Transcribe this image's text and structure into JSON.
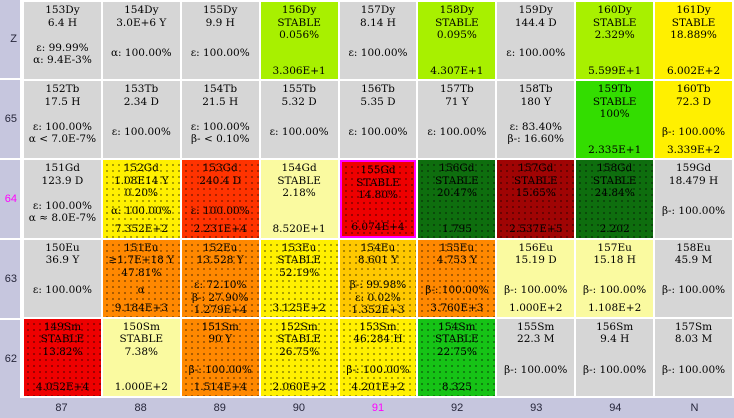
{
  "palette": {
    "gray": "#d6d6d6",
    "chartreuse": "#a8f000",
    "green": "#33dd00",
    "midgreen": "#16c316",
    "darkgreen": "#0e6e0e",
    "yellow": "#fff000",
    "paleyellow": "#fafaa0",
    "amber": "#ffc800",
    "orange": "#ff8800",
    "orangered": "#ff3300",
    "red": "#ee0000",
    "darkred": "#a00404",
    "axis_bg": "#c6c6de",
    "axis_text": "#26263a",
    "highlight": "#ff00ff",
    "cell_text": "#000000",
    "grid_bg": "#ffffff"
  },
  "selected": {
    "nuclide": "155Gd",
    "border_color": "#ff00ff"
  },
  "z_axis": {
    "labels": [
      {
        "text": "Z",
        "highlighted": false
      },
      {
        "text": "65",
        "highlighted": false
      },
      {
        "text": "64",
        "highlighted": true
      },
      {
        "text": "63",
        "highlighted": false
      },
      {
        "text": "62",
        "highlighted": false
      }
    ]
  },
  "n_axis": {
    "labels": [
      {
        "text": "87",
        "highlighted": false
      },
      {
        "text": "88",
        "highlighted": false
      },
      {
        "text": "89",
        "highlighted": false
      },
      {
        "text": "90",
        "highlighted": false
      },
      {
        "text": "91",
        "highlighted": true
      },
      {
        "text": "92",
        "highlighted": false
      },
      {
        "text": "93",
        "highlighted": false
      },
      {
        "text": "94",
        "highlighted": false
      },
      {
        "text": "N",
        "highlighted": false
      }
    ]
  },
  "rows": [
    {
      "element": "Dy",
      "cells": [
        {
          "name": "153Dy",
          "line2": "6.4 H",
          "abundance": "",
          "decay": [
            "ε: 99.99%",
            "α: 9.4E-3%"
          ],
          "value": "",
          "color": "gray",
          "dotted": false,
          "selected": false
        },
        {
          "name": "154Dy",
          "line2": "3.0E+6 Y",
          "abundance": "",
          "decay": [
            "α: 100.00%"
          ],
          "value": "",
          "color": "gray",
          "dotted": false,
          "selected": false
        },
        {
          "name": "155Dy",
          "line2": "9.9 H",
          "abundance": "",
          "decay": [
            "ε: 100.00%"
          ],
          "value": "",
          "color": "gray",
          "dotted": false,
          "selected": false
        },
        {
          "name": "156Dy",
          "line2": "STABLE",
          "abundance": "0.056%",
          "decay": [],
          "value": "3.306E+1",
          "color": "chartreuse",
          "dotted": false,
          "selected": false
        },
        {
          "name": "157Dy",
          "line2": "8.14 H",
          "abundance": "",
          "decay": [
            "ε: 100.00%"
          ],
          "value": "",
          "color": "gray",
          "dotted": false,
          "selected": false
        },
        {
          "name": "158Dy",
          "line2": "STABLE",
          "abundance": "0.095%",
          "decay": [],
          "value": "4.307E+1",
          "color": "chartreuse",
          "dotted": false,
          "selected": false
        },
        {
          "name": "159Dy",
          "line2": "144.4 D",
          "abundance": "",
          "decay": [
            "ε: 100.00%"
          ],
          "value": "",
          "color": "gray",
          "dotted": false,
          "selected": false
        },
        {
          "name": "160Dy",
          "line2": "STABLE",
          "abundance": "2.329%",
          "decay": [],
          "value": "5.599E+1",
          "color": "chartreuse",
          "dotted": false,
          "selected": false
        },
        {
          "name": "161Dy",
          "line2": "STABLE",
          "abundance": "18.889%",
          "decay": [],
          "value": "6.002E+2",
          "color": "yellow",
          "dotted": false,
          "selected": false
        }
      ]
    },
    {
      "element": "Tb",
      "cells": [
        {
          "name": "152Tb",
          "line2": "17.5 H",
          "abundance": "",
          "decay": [
            "ε: 100.00%",
            "α < 7.0E-7%"
          ],
          "value": "",
          "color": "gray",
          "dotted": false,
          "selected": false
        },
        {
          "name": "153Tb",
          "line2": "2.34 D",
          "abundance": "",
          "decay": [
            "ε: 100.00%"
          ],
          "value": "",
          "color": "gray",
          "dotted": false,
          "selected": false
        },
        {
          "name": "154Tb",
          "line2": "21.5 H",
          "abundance": "",
          "decay": [
            "ε: 100.00%",
            "β- < 0.10%"
          ],
          "value": "",
          "color": "gray",
          "dotted": false,
          "selected": false
        },
        {
          "name": "155Tb",
          "line2": "5.32 D",
          "abundance": "",
          "decay": [
            "ε: 100.00%"
          ],
          "value": "",
          "color": "gray",
          "dotted": false,
          "selected": false
        },
        {
          "name": "156Tb",
          "line2": "5.35 D",
          "abundance": "",
          "decay": [
            "ε: 100.00%"
          ],
          "value": "",
          "color": "gray",
          "dotted": false,
          "selected": false
        },
        {
          "name": "157Tb",
          "line2": "71 Y",
          "abundance": "",
          "decay": [
            "ε: 100.00%"
          ],
          "value": "",
          "color": "gray",
          "dotted": false,
          "selected": false
        },
        {
          "name": "158Tb",
          "line2": "180 Y",
          "abundance": "",
          "decay": [
            "ε: 83.40%",
            "β-: 16.60%"
          ],
          "value": "",
          "color": "gray",
          "dotted": false,
          "selected": false
        },
        {
          "name": "159Tb",
          "line2": "STABLE",
          "abundance": "100%",
          "decay": [],
          "value": "2.335E+1",
          "color": "green",
          "dotted": false,
          "selected": false
        },
        {
          "name": "160Tb",
          "line2": "72.3 D",
          "abundance": "",
          "decay": [
            "β-: 100.00%"
          ],
          "value": "3.339E+2",
          "color": "yellow",
          "dotted": false,
          "selected": false
        }
      ]
    },
    {
      "element": "Gd",
      "cells": [
        {
          "name": "151Gd",
          "line2": "123.9 D",
          "abundance": "",
          "decay": [
            "ε: 100.00%",
            "α ≈ 8.0E-7%"
          ],
          "value": "",
          "color": "gray",
          "dotted": false,
          "selected": false
        },
        {
          "name": "152Gd",
          "line2": "1.08E14 Y",
          "abundance": "0.20%",
          "decay": [
            "α: 100.00%"
          ],
          "value": "7.352E+2",
          "color": "yellow",
          "dotted": true,
          "selected": false
        },
        {
          "name": "153Gd",
          "line2": "240.4 D",
          "abundance": "",
          "decay": [
            "ε: 100.00%"
          ],
          "value": "2.231E+4",
          "color": "orangered",
          "dotted": true,
          "selected": false
        },
        {
          "name": "154Gd",
          "line2": "STABLE",
          "abundance": "2.18%",
          "decay": [],
          "value": "8.520E+1",
          "color": "paleyellow",
          "dotted": false,
          "selected": false
        },
        {
          "name": "155Gd",
          "line2": "STABLE",
          "abundance": "14.80%",
          "decay": [],
          "value": "6.074E+4",
          "color": "red",
          "dotted": true,
          "selected": true
        },
        {
          "name": "156Gd",
          "line2": "STABLE",
          "abundance": "20.47%",
          "decay": [],
          "value": "1.795",
          "color": "darkgreen",
          "dotted": true,
          "selected": false
        },
        {
          "name": "157Gd",
          "line2": "STABLE",
          "abundance": "15.65%",
          "decay": [],
          "value": "2.537E+5",
          "color": "darkred",
          "dotted": true,
          "selected": false
        },
        {
          "name": "158Gd",
          "line2": "STABLE",
          "abundance": "24.84%",
          "decay": [],
          "value": "2.202",
          "color": "darkgreen",
          "dotted": true,
          "selected": false
        },
        {
          "name": "159Gd",
          "line2": "18.479 H",
          "abundance": "",
          "decay": [
            "β-: 100.00%"
          ],
          "value": "",
          "color": "gray",
          "dotted": false,
          "selected": false
        }
      ]
    },
    {
      "element": "Eu",
      "cells": [
        {
          "name": "150Eu",
          "line2": "36.9 Y",
          "abundance": "",
          "decay": [
            "ε: 100.00%"
          ],
          "value": "",
          "color": "gray",
          "dotted": false,
          "selected": false
        },
        {
          "name": "151Eu",
          "line2": "≥1.7E+18 Y",
          "abundance": "47.81%",
          "decay": [
            "α"
          ],
          "value": "9.184E+3",
          "color": "orange",
          "dotted": true,
          "selected": false
        },
        {
          "name": "152Eu",
          "line2": "13.528 Y",
          "abundance": "",
          "decay": [
            "ε: 72.10%",
            "β-: 27.90%"
          ],
          "value": "1.279E+4",
          "color": "orange",
          "dotted": true,
          "selected": false
        },
        {
          "name": "153Eu",
          "line2": "STABLE",
          "abundance": "52.19%",
          "decay": [],
          "value": "3.125E+2",
          "color": "yellow",
          "dotted": true,
          "selected": false
        },
        {
          "name": "154Eu",
          "line2": "8.601 Y",
          "abundance": "",
          "decay": [
            "β-: 99.98%",
            "ε: 0.02%"
          ],
          "value": "1.352E+3",
          "color": "amber",
          "dotted": true,
          "selected": false
        },
        {
          "name": "155Eu",
          "line2": "4.753 Y",
          "abundance": "",
          "decay": [
            "β-: 100.00%"
          ],
          "value": "3.760E+3",
          "color": "orange",
          "dotted": true,
          "selected": false
        },
        {
          "name": "156Eu",
          "line2": "15.19 D",
          "abundance": "",
          "decay": [
            "β-: 100.00%"
          ],
          "value": "1.000E+2",
          "color": "paleyellow",
          "dotted": false,
          "selected": false
        },
        {
          "name": "157Eu",
          "line2": "15.18 H",
          "abundance": "",
          "decay": [
            "β-: 100.00%"
          ],
          "value": "1.108E+2",
          "color": "paleyellow",
          "dotted": false,
          "selected": false
        },
        {
          "name": "158Eu",
          "line2": "45.9 M",
          "abundance": "",
          "decay": [
            "β-: 100.00%"
          ],
          "value": "",
          "color": "gray",
          "dotted": false,
          "selected": false
        }
      ]
    },
    {
      "element": "Sm",
      "cells": [
        {
          "name": "149Sm",
          "line2": "STABLE",
          "abundance": "13.82%",
          "decay": [],
          "value": "4.052E+4",
          "color": "red",
          "dotted": true,
          "selected": false
        },
        {
          "name": "150Sm",
          "line2": "STABLE",
          "abundance": "7.38%",
          "decay": [],
          "value": "1.000E+2",
          "color": "paleyellow",
          "dotted": false,
          "selected": false
        },
        {
          "name": "151Sm",
          "line2": "90 Y",
          "abundance": "",
          "decay": [
            "β-: 100.00%"
          ],
          "value": "1.514E+4",
          "color": "orange",
          "dotted": true,
          "selected": false
        },
        {
          "name": "152Sm",
          "line2": "STABLE",
          "abundance": "26.75%",
          "decay": [],
          "value": "2.060E+2",
          "color": "yellow",
          "dotted": true,
          "selected": false
        },
        {
          "name": "153Sm",
          "line2": "46.284 H",
          "abundance": "",
          "decay": [
            "β-: 100.00%"
          ],
          "value": "4.201E+2",
          "color": "yellow",
          "dotted": true,
          "selected": false
        },
        {
          "name": "154Sm",
          "line2": "STABLE",
          "abundance": "22.75%",
          "decay": [],
          "value": "8.325",
          "color": "midgreen",
          "dotted": true,
          "selected": false
        },
        {
          "name": "155Sm",
          "line2": "22.3 M",
          "abundance": "",
          "decay": [
            "β-: 100.00%"
          ],
          "value": "",
          "color": "gray",
          "dotted": false,
          "selected": false
        },
        {
          "name": "156Sm",
          "line2": "9.4 H",
          "abundance": "",
          "decay": [
            "β-: 100.00%"
          ],
          "value": "",
          "color": "gray",
          "dotted": false,
          "selected": false
        },
        {
          "name": "157Sm",
          "line2": "8.03 M",
          "abundance": "",
          "decay": [
            "β-: 100.00%"
          ],
          "value": "",
          "color": "gray",
          "dotted": false,
          "selected": false
        }
      ]
    }
  ]
}
